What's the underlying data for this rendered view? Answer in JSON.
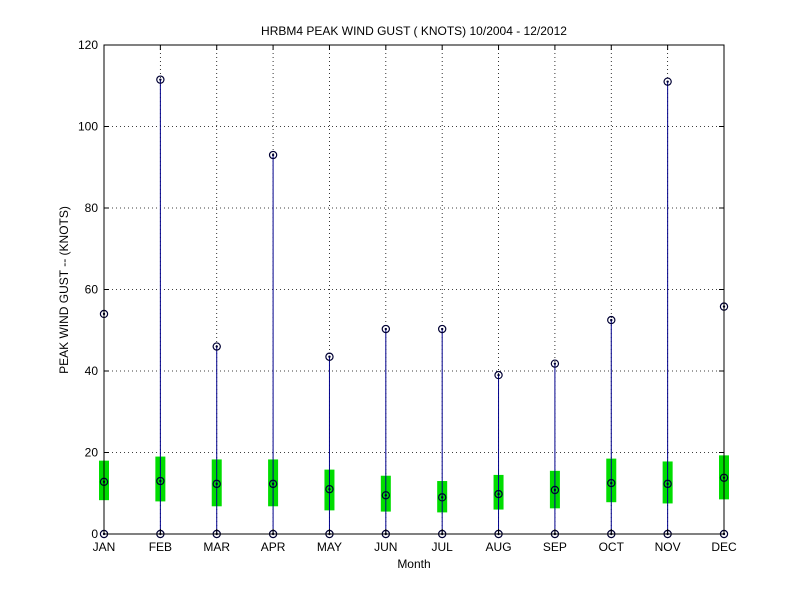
{
  "chart_data": {
    "type": "box",
    "title": "HRBM4  PEAK WIND GUST ( KNOTS) 10/2004 - 12/2012",
    "xlabel": "Month",
    "ylabel": "PEAK WIND GUST -- (KNOTS)",
    "ylim": [
      0,
      120
    ],
    "yticks": [
      "0",
      "20",
      "40",
      "60",
      "80",
      "100",
      "120"
    ],
    "grid": true,
    "categories": [
      "JAN",
      "FEB",
      "MAR",
      "APR",
      "MAY",
      "JUN",
      "JUL",
      "AUG",
      "SEP",
      "OCT",
      "NOV",
      "DEC"
    ],
    "min": [
      0,
      0,
      0,
      0,
      0,
      0,
      0,
      0,
      0,
      0,
      0,
      0
    ],
    "q1": [
      8.3,
      8.0,
      6.8,
      6.8,
      5.8,
      5.5,
      5.3,
      6.0,
      6.3,
      7.8,
      7.5,
      8.5
    ],
    "median": [
      12.8,
      13.0,
      12.3,
      12.3,
      11.0,
      9.5,
      9.0,
      9.8,
      10.8,
      12.5,
      12.3,
      13.8
    ],
    "q3": [
      18.0,
      19.0,
      18.3,
      18.3,
      15.8,
      14.3,
      13.0,
      14.5,
      15.5,
      18.5,
      17.8,
      19.3
    ],
    "max": [
      54.0,
      111.5,
      46.0,
      93.0,
      43.5,
      50.3,
      50.3,
      39.0,
      41.8,
      52.5,
      111.0,
      55.8
    ],
    "colors": {
      "whisker": "#00008b",
      "box": "#00dd00",
      "marker": "#000033"
    }
  }
}
